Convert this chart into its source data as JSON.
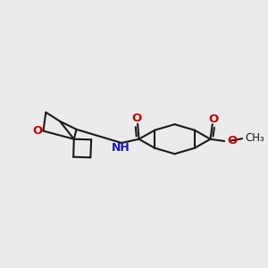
{
  "bg_color": "#ebebeb",
  "bond_color": "#1a1a1a",
  "O_color": "#cc0000",
  "N_color": "#1515cc",
  "line_width": 1.5,
  "fig_width": 3.0,
  "fig_height": 3.0,
  "dpi": 100,
  "xlim": [
    0,
    10
  ],
  "ylim": [
    2.5,
    8.5
  ]
}
